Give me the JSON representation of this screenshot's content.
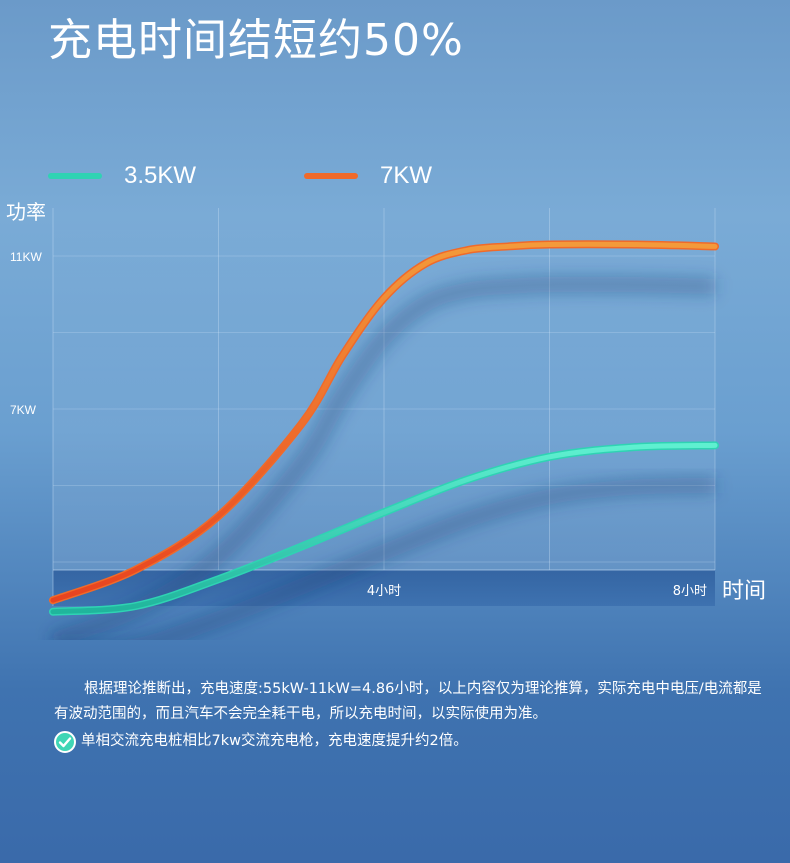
{
  "headline": "充电时间结短约50%",
  "legend": [
    {
      "label": "3.5KW",
      "color": "#2fd3b3"
    },
    {
      "label": "7KW",
      "color": "#f06a2a"
    }
  ],
  "chart_data": {
    "type": "line",
    "ylabel": "功率",
    "xlabel": "时间",
    "y_ticks": [
      "11KW",
      "7KW"
    ],
    "x_ticks": [
      "4小时",
      "8小时"
    ],
    "xlim": [
      0,
      8
    ],
    "grid": true,
    "legend_position": "top-left",
    "series": [
      {
        "name": "7KW",
        "color": "#f06a2a",
        "x": [
          0,
          1,
          2,
          3,
          3.5,
          4,
          4.5,
          5,
          5.5,
          6,
          7,
          8
        ],
        "y": [
          2.0,
          2.8,
          4.2,
          6.6,
          8.4,
          9.9,
          10.8,
          11.15,
          11.25,
          11.3,
          11.3,
          11.25
        ]
      },
      {
        "name": "3.5KW",
        "color": "#2fd3b3",
        "x": [
          0,
          1,
          2,
          3,
          4,
          5,
          6,
          7,
          8
        ],
        "y": [
          1.7,
          1.85,
          2.55,
          3.4,
          4.3,
          5.15,
          5.75,
          6.0,
          6.05
        ]
      }
    ]
  },
  "note": {
    "paragraph": "根据理论推断出，充电速度:55kW-11kW=4.86小时，以上内容仅为理论推算，实际充电中电压/电流都是有波动范围的，而且汽车不会完全耗干电，所以充电时间，以实际使用为准。",
    "claim": "单相交流充电桩相比7kw交流充电枪，充电速度提升约2倍。",
    "check_color": "#3fd6b5"
  }
}
